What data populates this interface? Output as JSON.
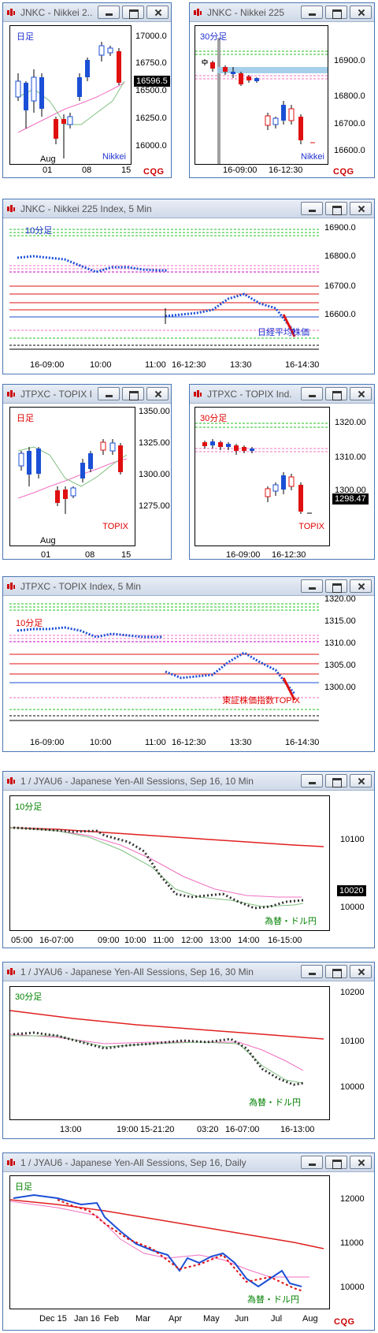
{
  "panels": [
    {
      "id": "p1",
      "title": "JNKC - Nikkei 2...",
      "tf": "日足",
      "tfColor": "#2030d0",
      "corner": "Nikkei",
      "cornerColor": "#2030d0",
      "yticks": [
        "17000.0",
        "16750.0",
        "16500.0",
        "16250.0",
        "16000.0"
      ],
      "xticks": [
        "01",
        "08",
        "15"
      ],
      "month": "Aug",
      "price": "16596.5",
      "logo": "CQG"
    },
    {
      "id": "p2",
      "title": "JNKC - Nikkei 225",
      "tf": "30分足",
      "tfColor": "#2030d0",
      "corner": "Nikkei",
      "cornerColor": "#2030d0",
      "yticks": [
        "16900.0",
        "16800.0",
        "16700.0",
        "16600.0"
      ],
      "xticks": [
        "16-09:00",
        "16-12:30"
      ],
      "logo": "CQG"
    },
    {
      "id": "p3",
      "title": "JNKC - Nikkei 225 Index, 5 Min",
      "tf": "10分足",
      "tfColor": "#2030d0",
      "corner": "日経平均株価",
      "cornerColor": "#2030d0",
      "yticks": [
        "16900.0",
        "16800.0",
        "16700.0",
        "16600.0"
      ],
      "xticks": [
        "16-09:00",
        "10:00",
        "11:00",
        "16-12:30",
        "13:30",
        "16-14:30"
      ]
    },
    {
      "id": "p4",
      "title": "JTPXC - TOPIX I...",
      "tf": "日足",
      "tfColor": "#e00000",
      "corner": "TOPIX",
      "cornerColor": "#e00000",
      "yticks": [
        "1350.00",
        "1325.00",
        "1300.00",
        "1275.00"
      ],
      "xticks": [
        "01",
        "08",
        "15"
      ],
      "month": "Aug"
    },
    {
      "id": "p5",
      "title": "JTPXC - TOPIX Ind...",
      "tf": "30分足",
      "tfColor": "#e00000",
      "corner": "TOPIX",
      "cornerColor": "#e00000",
      "yticks": [
        "1320.00",
        "1310.00",
        "1300.00"
      ],
      "xticks": [
        "16-09:00",
        "16-12:30"
      ],
      "price": "1298.47"
    },
    {
      "id": "p6",
      "title": "JTPXC - TOPIX Index, 5 Min",
      "tf": "10分足",
      "tfColor": "#e00000",
      "corner": "東証株価指数TOPIX",
      "cornerColor": "#e00000",
      "yticks": [
        "1320.00",
        "1315.00",
        "1310.00",
        "1305.00",
        "1300.00"
      ],
      "xticks": [
        "16-09:00",
        "10:00",
        "11:00",
        "16-12:30",
        "13:30",
        "16-14:30"
      ]
    },
    {
      "id": "p7",
      "title": "1 / JYAU6 - Japanese Yen-All Sessions, Sep 16, 10 Min",
      "tf": "10分足",
      "tfColor": "#008000",
      "corner": "為替・ドル円",
      "cornerColor": "#008000",
      "yticks": [
        "10100",
        "10000"
      ],
      "xticks": [
        "05:00",
        "16-07:00",
        "09:00",
        "10:00",
        "11:00",
        "12:00",
        "13:00",
        "14:00",
        "16-15:00"
      ],
      "price": "10020"
    },
    {
      "id": "p8",
      "title": "1 / JYAU6 - Japanese Yen-All Sessions, Sep 16, 30 Min",
      "tf": "30分足",
      "tfColor": "#008000",
      "corner": "為替・ドル円",
      "cornerColor": "#008000",
      "yticks": [
        "10200",
        "10100",
        "10000"
      ],
      "xticks": [
        "13:00",
        "19:00",
        "15-21:20",
        "03:20",
        "16-07:00",
        "16-13:00"
      ]
    },
    {
      "id": "p9",
      "title": "1 / JYAU6 - Japanese Yen-All Sessions, Sep 16, Daily",
      "tf": "日足",
      "tfColor": "#008000",
      "corner": "為替・ドル円",
      "cornerColor": "#008000",
      "yticks": [
        "12000",
        "11000",
        "10000"
      ],
      "xticks": [
        "Dec 15",
        "Jan 16",
        "Feb",
        "Mar",
        "Apr",
        "May",
        "Jun",
        "Jul",
        "Aug"
      ],
      "logo": "CQG"
    }
  ],
  "colors": {
    "up": "#1b4fd6",
    "down": "#e01010",
    "ma1": "#f070c0",
    "ma2": "#80c080",
    "ma3": "#e02020",
    "border": "#4a77b4"
  }
}
